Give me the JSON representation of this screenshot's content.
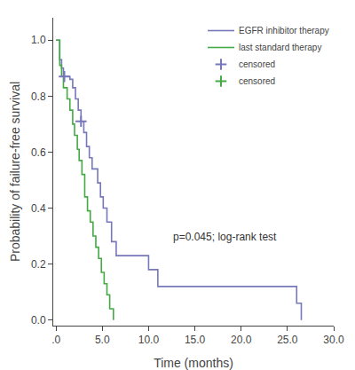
{
  "chart_data": {
    "type": "line",
    "xlabel": "Time (months)",
    "ylabel": "Probability of failure-free survival",
    "xlim": [
      -0.3,
      30
    ],
    "ylim": [
      -0.02,
      1.08
    ],
    "xticks": [
      {
        "value": 0,
        "label": ".0"
      },
      {
        "value": 5,
        "label": "5.0"
      },
      {
        "value": 10,
        "label": "10.0"
      },
      {
        "value": 15,
        "label": "15.0"
      },
      {
        "value": 20,
        "label": "20.0"
      },
      {
        "value": 25,
        "label": "25.0"
      },
      {
        "value": 30,
        "label": "30.0"
      }
    ],
    "yticks": [
      {
        "value": 0.0,
        "label": "0.0"
      },
      0.2,
      0.4,
      0.6,
      0.8,
      {
        "value": 1.0,
        "label": "1.0"
      }
    ],
    "grid": false,
    "legend": "upper right",
    "annotations": [
      {
        "text": "p=0.045; log-rank test",
        "x": 12.5,
        "y": 0.27
      }
    ],
    "series": [
      {
        "name": "EGFR inhibitor therapy",
        "type": "step",
        "color": "#7777bb",
        "x": [
          0.0,
          0.2,
          0.4,
          0.6,
          0.8,
          1.0,
          1.2,
          1.5,
          1.8,
          2.1,
          2.4,
          2.7,
          3.0,
          3.3,
          3.6,
          3.9,
          4.2,
          4.5,
          4.8,
          5.1,
          5.5,
          6.0,
          6.5,
          7.0,
          10.0,
          11.0,
          26.0,
          26.5
        ],
        "values": [
          1.0,
          1.0,
          0.93,
          0.9,
          0.87,
          0.87,
          0.87,
          0.86,
          0.83,
          0.79,
          0.75,
          0.71,
          0.67,
          0.62,
          0.58,
          0.54,
          0.54,
          0.49,
          0.44,
          0.4,
          0.35,
          0.28,
          0.23,
          0.23,
          0.18,
          0.12,
          0.06,
          0.0
        ]
      },
      {
        "name": "last standard therapy",
        "type": "step",
        "color": "#44aa44",
        "x": [
          0.0,
          0.2,
          0.4,
          0.6,
          0.8,
          1.0,
          1.2,
          1.5,
          1.8,
          2.0,
          2.3,
          2.5,
          2.8,
          3.1,
          3.4,
          3.7,
          4.0,
          4.3,
          4.6,
          4.9,
          5.2,
          5.5,
          5.8,
          6.2
        ],
        "values": [
          1.0,
          1.0,
          0.91,
          0.87,
          0.83,
          0.83,
          0.79,
          0.75,
          0.7,
          0.66,
          0.61,
          0.57,
          0.52,
          0.44,
          0.39,
          0.35,
          0.3,
          0.26,
          0.22,
          0.17,
          0.13,
          0.09,
          0.04,
          0.0
        ]
      },
      {
        "name": "censored",
        "type": "scatter",
        "marker": "plus",
        "color": "#7777bb",
        "x": [
          0.9,
          2.7
        ],
        "values": [
          0.87,
          0.71
        ]
      },
      {
        "name": "censored",
        "type": "scatter",
        "marker": "plus",
        "color": "#44aa44",
        "x": [],
        "values": []
      }
    ]
  }
}
